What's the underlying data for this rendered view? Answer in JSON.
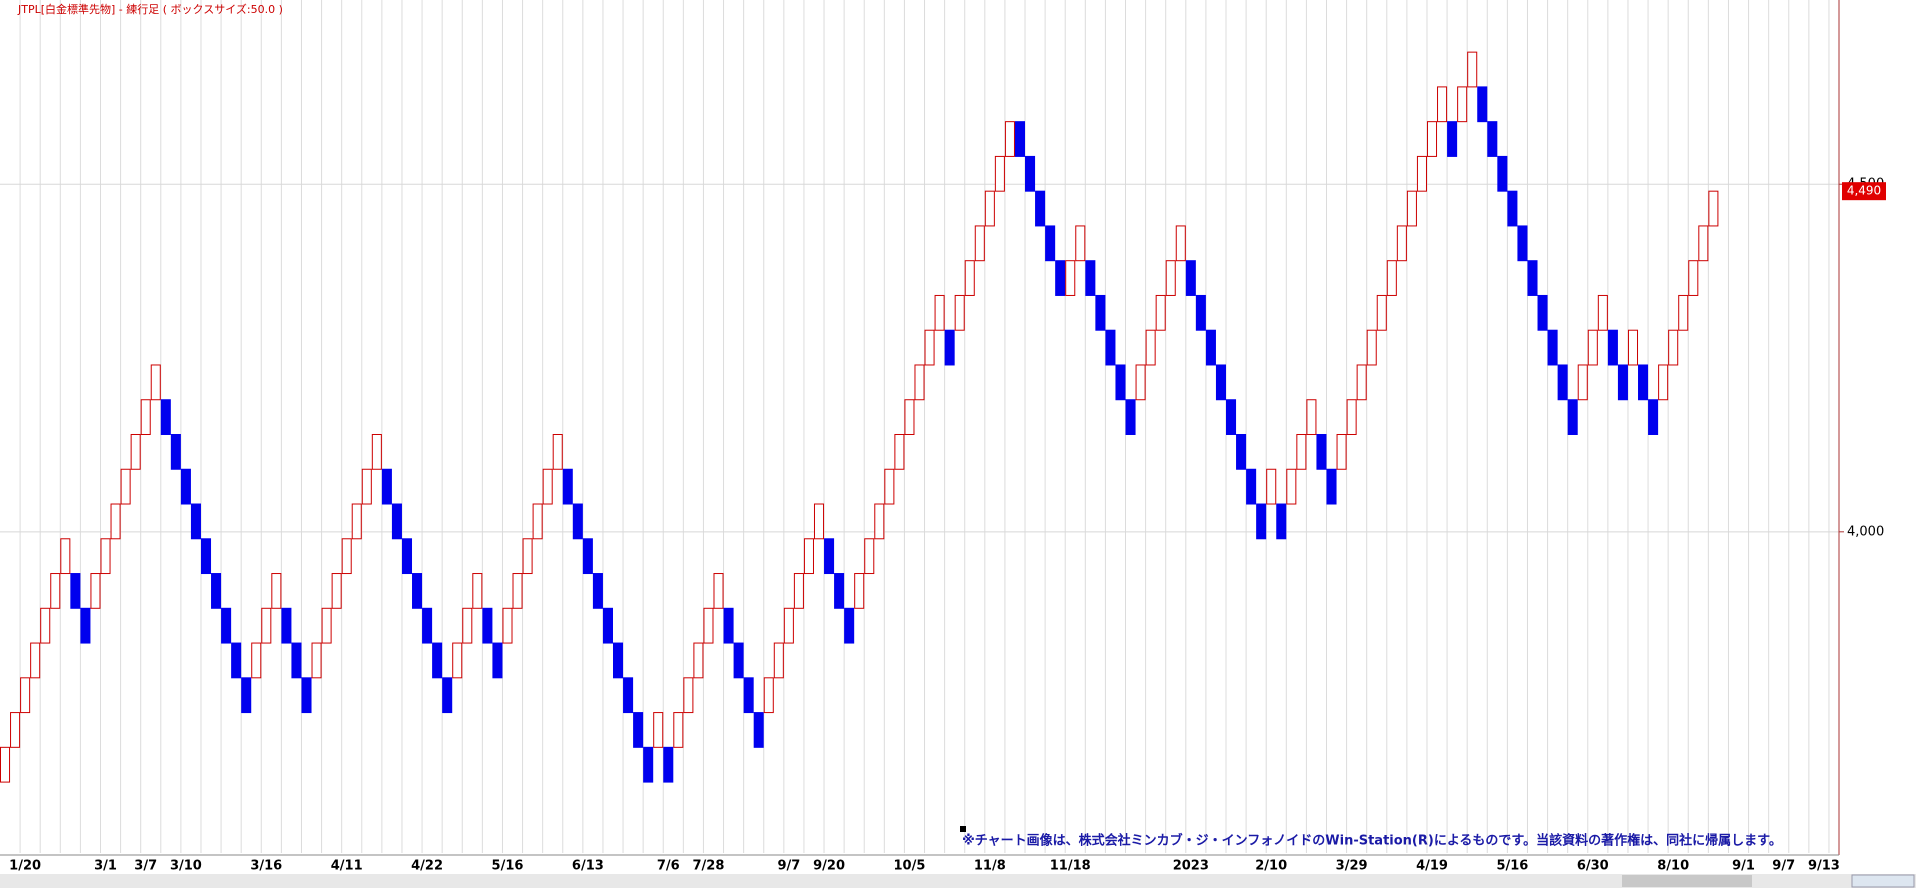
{
  "chart_data": {
    "type": "renko",
    "title": "JTPL[白金標準先物] - 練行足 ( ボックスサイズ:50.0 )",
    "note": "※チャート画像は、株式会社ミンカブ・ジ・インフォノイドのWin-Station(R)によるものです。当該資料の著作権は、同社に帰属します。",
    "up_color": "#cc0000",
    "down_color": "#0000ee",
    "categories": [
      null,
      null,
      "1/20",
      null,
      null,
      null,
      null,
      null,
      null,
      null,
      "3/1",
      null,
      null,
      null,
      "3/7",
      null,
      null,
      null,
      "3/10",
      null,
      null,
      null,
      null,
      null,
      null,
      null,
      "3/16",
      null,
      null,
      null,
      null,
      null,
      null,
      null,
      "4/11",
      null,
      null,
      null,
      null,
      null,
      null,
      null,
      "4/22",
      null,
      null,
      null,
      null,
      null,
      null,
      null,
      "5/16",
      null,
      null,
      null,
      null,
      null,
      null,
      null,
      "6/13",
      null,
      null,
      null,
      null,
      null,
      null,
      null,
      "7/6",
      null,
      null,
      null,
      "7/28",
      null,
      null,
      null,
      null,
      null,
      null,
      null,
      "9/7",
      null,
      null,
      null,
      "9/20",
      null,
      null,
      null,
      null,
      null,
      null,
      null,
      "10/5",
      null,
      null,
      null,
      null,
      null,
      null,
      null,
      "11/8",
      null,
      null,
      null,
      null,
      null,
      null,
      null,
      "11/18",
      null,
      null,
      null,
      null,
      null,
      null,
      null,
      null,
      null,
      null,
      null,
      "2023",
      null,
      null,
      null,
      null,
      null,
      null,
      null,
      "2/10",
      null,
      null,
      null,
      null,
      null,
      null,
      null,
      "3/29",
      null,
      null,
      null,
      null,
      null,
      null,
      null,
      "4/19",
      null,
      null,
      null,
      null,
      null,
      null,
      null,
      "5/16",
      null,
      null,
      null,
      null,
      null,
      null,
      null,
      "6/30",
      null,
      null,
      null,
      null,
      null,
      null,
      null,
      "8/10",
      null,
      null,
      null,
      null,
      null,
      null,
      "9/1",
      null,
      null,
      null,
      "9/7",
      null,
      null,
      null,
      "9/13",
      null
    ],
    "open": [
      3640,
      3690,
      3740,
      3790,
      3840,
      3890,
      3940,
      3940,
      3890,
      3890,
      3940,
      3990,
      4040,
      4090,
      4140,
      4190,
      4190,
      4140,
      4090,
      4040,
      3990,
      3940,
      3890,
      3840,
      3790,
      3790,
      3840,
      3890,
      3890,
      3840,
      3790,
      3790,
      3840,
      3890,
      3940,
      3990,
      4040,
      4090,
      4090,
      4040,
      3990,
      3940,
      3890,
      3840,
      3790,
      3790,
      3840,
      3890,
      3890,
      3840,
      3840,
      3890,
      3940,
      3990,
      4040,
      4090,
      4090,
      4040,
      3990,
      3940,
      3890,
      3840,
      3790,
      3740,
      3690,
      3690,
      3690,
      3690,
      3740,
      3790,
      3840,
      3890,
      3890,
      3840,
      3790,
      3740,
      3740,
      3790,
      3840,
      3890,
      3940,
      3990,
      3990,
      3940,
      3890,
      3890,
      3940,
      3990,
      4040,
      4090,
      4140,
      4190,
      4240,
      4290,
      4290,
      4290,
      4340,
      4390,
      4440,
      4490,
      4540,
      4590,
      4540,
      4490,
      4440,
      4390,
      4340,
      4390,
      4390,
      4340,
      4290,
      4240,
      4190,
      4190,
      4240,
      4290,
      4340,
      4390,
      4390,
      4340,
      4290,
      4240,
      4190,
      4140,
      4090,
      4040,
      4040,
      4040,
      4040,
      4090,
      4140,
      4140,
      4090,
      4090,
      4140,
      4190,
      4240,
      4290,
      4340,
      4390,
      4440,
      4490,
      4540,
      4590,
      4590,
      4590,
      4640,
      4640,
      4590,
      4540,
      4490,
      4440,
      4390,
      4340,
      4290,
      4240,
      4190,
      4190,
      4240,
      4290,
      4290,
      4240,
      4240,
      4240,
      4190,
      4190,
      4240,
      4290,
      4340,
      4390,
      4440,
      null,
      null,
      null,
      null,
      null,
      null,
      null,
      null,
      null,
      null,
      null,
      null
    ],
    "values": [
      3690,
      3740,
      3790,
      3840,
      3890,
      3940,
      3990,
      3890,
      3840,
      3940,
      3990,
      4040,
      4090,
      4140,
      4190,
      4240,
      4140,
      4090,
      4040,
      3990,
      3940,
      3890,
      3840,
      3790,
      3740,
      3840,
      3890,
      3940,
      3840,
      3790,
      3740,
      3840,
      3890,
      3940,
      3990,
      4040,
      4090,
      4140,
      4040,
      3990,
      3940,
      3890,
      3840,
      3790,
      3740,
      3840,
      3890,
      3940,
      3840,
      3790,
      3890,
      3940,
      3990,
      4040,
      4090,
      4140,
      4040,
      3990,
      3940,
      3890,
      3840,
      3790,
      3740,
      3690,
      3640,
      3740,
      3640,
      3740,
      3790,
      3840,
      3890,
      3940,
      3840,
      3790,
      3740,
      3690,
      3790,
      3840,
      3890,
      3940,
      3990,
      4040,
      3940,
      3890,
      3840,
      3940,
      3990,
      4040,
      4090,
      4140,
      4190,
      4240,
      4290,
      4340,
      4240,
      4340,
      4390,
      4440,
      4490,
      4540,
      4590,
      4540,
      4490,
      4440,
      4390,
      4340,
      4390,
      4440,
      4340,
      4290,
      4240,
      4190,
      4140,
      4240,
      4290,
      4340,
      4390,
      4440,
      4340,
      4290,
      4240,
      4190,
      4140,
      4090,
      4040,
      3990,
      4090,
      3990,
      4090,
      4140,
      4190,
      4090,
      4040,
      4140,
      4190,
      4240,
      4290,
      4340,
      4390,
      4440,
      4490,
      4540,
      4590,
      4640,
      4540,
      4640,
      4690,
      4590,
      4540,
      4490,
      4440,
      4390,
      4340,
      4290,
      4240,
      4190,
      4140,
      4240,
      4290,
      4340,
      4240,
      4190,
      4290,
      4190,
      4140,
      4240,
      4290,
      4340,
      4390,
      4440,
      4490,
      null,
      null,
      null,
      null,
      null,
      null,
      null,
      null,
      null,
      null,
      null,
      null
    ],
    "ylim": [
      3538,
      4765
    ],
    "yticks": [
      {
        "value": 4000,
        "label": "4,000"
      },
      {
        "value": 4500,
        "label": "4,500"
      }
    ],
    "last_price": {
      "value": 4490,
      "label": "4,490"
    },
    "grid": true
  }
}
